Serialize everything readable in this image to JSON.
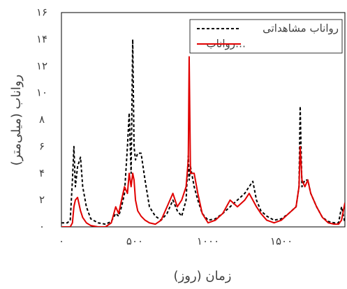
{
  "chart_data": {
    "type": "line",
    "xlabel": "زمان (روز)",
    "ylabel": "رواناب (میلی‌متر)",
    "x": [
      0,
      40,
      60,
      75,
      85,
      95,
      110,
      130,
      145,
      170,
      200,
      250,
      300,
      340,
      370,
      390,
      410,
      430,
      450,
      462,
      475,
      486,
      495,
      505,
      520,
      543,
      570,
      600,
      640,
      680,
      720,
      760,
      790,
      820,
      850,
      865,
      871,
      880,
      905,
      930,
      960,
      1000,
      1050,
      1100,
      1150,
      1200,
      1250,
      1280,
      1305,
      1330,
      1360,
      1400,
      1450,
      1500,
      1550,
      1600,
      1620,
      1628,
      1640,
      1660,
      1680,
      1700,
      1740,
      1780,
      1820,
      1860,
      1890,
      1910,
      1933
    ],
    "series": [
      {
        "name": "رواناب مشاهداتی",
        "color": "#000000",
        "dashed": true,
        "values": [
          0.3,
          0.3,
          0.5,
          3.5,
          6,
          3,
          4.5,
          5.2,
          3,
          1.5,
          0.6,
          0.3,
          0.2,
          0.4,
          1,
          0.8,
          1.5,
          2.5,
          6,
          8.5,
          4,
          14,
          6,
          5,
          5.5,
          5.5,
          3.5,
          1.5,
          0.8,
          0.5,
          1,
          2,
          1.2,
          0.8,
          2,
          5.3,
          3.5,
          4.5,
          3,
          2,
          1,
          0.5,
          0.6,
          1,
          1.5,
          2,
          2.5,
          3,
          3.4,
          2,
          1.2,
          0.8,
          0.5,
          0.6,
          1,
          1.5,
          3,
          9,
          3,
          3.5,
          3.5,
          2.5,
          1.5,
          0.7,
          0.4,
          0.3,
          0.3,
          1.5,
          0.3
        ]
      },
      {
        "name": "رواناب…",
        "color": "#e00000",
        "dashed": false,
        "values": [
          0,
          0,
          0,
          0.3,
          1.5,
          2,
          2.2,
          1.2,
          0.7,
          0.3,
          0.1,
          0,
          0,
          0.3,
          1.5,
          1,
          2,
          3,
          2.5,
          4,
          3,
          4,
          3.5,
          2,
          1.2,
          0.8,
          0.5,
          0.3,
          0.2,
          0.5,
          1.5,
          2.5,
          1.5,
          2,
          3,
          5,
          12.7,
          4,
          4,
          2.5,
          1,
          0.3,
          0.5,
          1,
          2,
          1.5,
          2,
          2.5,
          2,
          1.5,
          1,
          0.5,
          0.3,
          0.5,
          1,
          1.5,
          3,
          6,
          3.5,
          3,
          3.5,
          2.5,
          1.5,
          0.7,
          0.3,
          0.2,
          0.2,
          0.5,
          1.8
        ]
      }
    ],
    "xlim": [
      0,
      1933
    ],
    "xticks": [
      {
        "value": 0,
        "label": "۰"
      },
      {
        "value": 500,
        "label": "۵۰۰"
      },
      {
        "value": 1000,
        "label": "۱۰۰۰"
      },
      {
        "value": 1500,
        "label": "۱۵۰۰"
      }
    ],
    "ylim": [
      0,
      16
    ],
    "yticks": [
      {
        "value": 0,
        "label": "۰"
      },
      {
        "value": 2,
        "label": "۲"
      },
      {
        "value": 4,
        "label": "۴"
      },
      {
        "value": 6,
        "label": "۶"
      },
      {
        "value": 8,
        "label": "۸"
      },
      {
        "value": 10,
        "label": "۱۰"
      },
      {
        "value": 12,
        "label": "۱۲"
      },
      {
        "value": 14,
        "label": "۱۴"
      },
      {
        "value": 16,
        "label": "۱۶"
      }
    ],
    "grid": false,
    "legend": "upper right"
  }
}
